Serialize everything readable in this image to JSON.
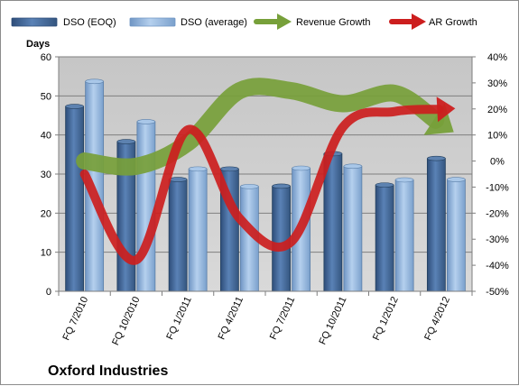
{
  "chart_data": {
    "type": "bar",
    "title": "Oxford Industries",
    "ylabel": "Days",
    "categories": [
      "FQ 7/2010",
      "FQ 10/2010",
      "FQ 1/2011",
      "FQ 4/2011",
      "FQ 7/2011",
      "FQ 10/2011",
      "FQ 1/2012",
      "FQ 4/2012"
    ],
    "ylim": [
      0,
      60
    ],
    "yticks": [
      "0",
      "10",
      "20",
      "30",
      "40",
      "50",
      "60"
    ],
    "y2lim": [
      -50,
      40
    ],
    "y2ticks": [
      "-50%",
      "-40%",
      "-30%",
      "-20%",
      "-10%",
      "0%",
      "10%",
      "20%",
      "30%",
      "40%"
    ],
    "grid": true,
    "legend_position": "top",
    "series": [
      {
        "name": "DSO (EOQ)",
        "type": "bar",
        "axis": "left",
        "color": "#4a6e9c",
        "values": [
          47.3,
          38.3,
          28.6,
          31.3,
          26.9,
          35.2,
          27.2,
          34.0
        ]
      },
      {
        "name": "DSO (average)",
        "type": "bar",
        "axis": "left",
        "color": "#92b6de",
        "values": [
          53.7,
          43.4,
          31.3,
          26.8,
          31.5,
          32.0,
          28.5,
          28.6
        ]
      },
      {
        "name": "Revenue Growth",
        "type": "line",
        "axis": "right",
        "color": "#77a03a",
        "values": [
          0,
          -2,
          7,
          27,
          27,
          22,
          26,
          13
        ]
      },
      {
        "name": "AR Growth",
        "type": "line",
        "axis": "right",
        "color": "#cc1e1e",
        "values": [
          -5,
          -38,
          12,
          -22,
          -31,
          13,
          19,
          20
        ]
      }
    ]
  }
}
